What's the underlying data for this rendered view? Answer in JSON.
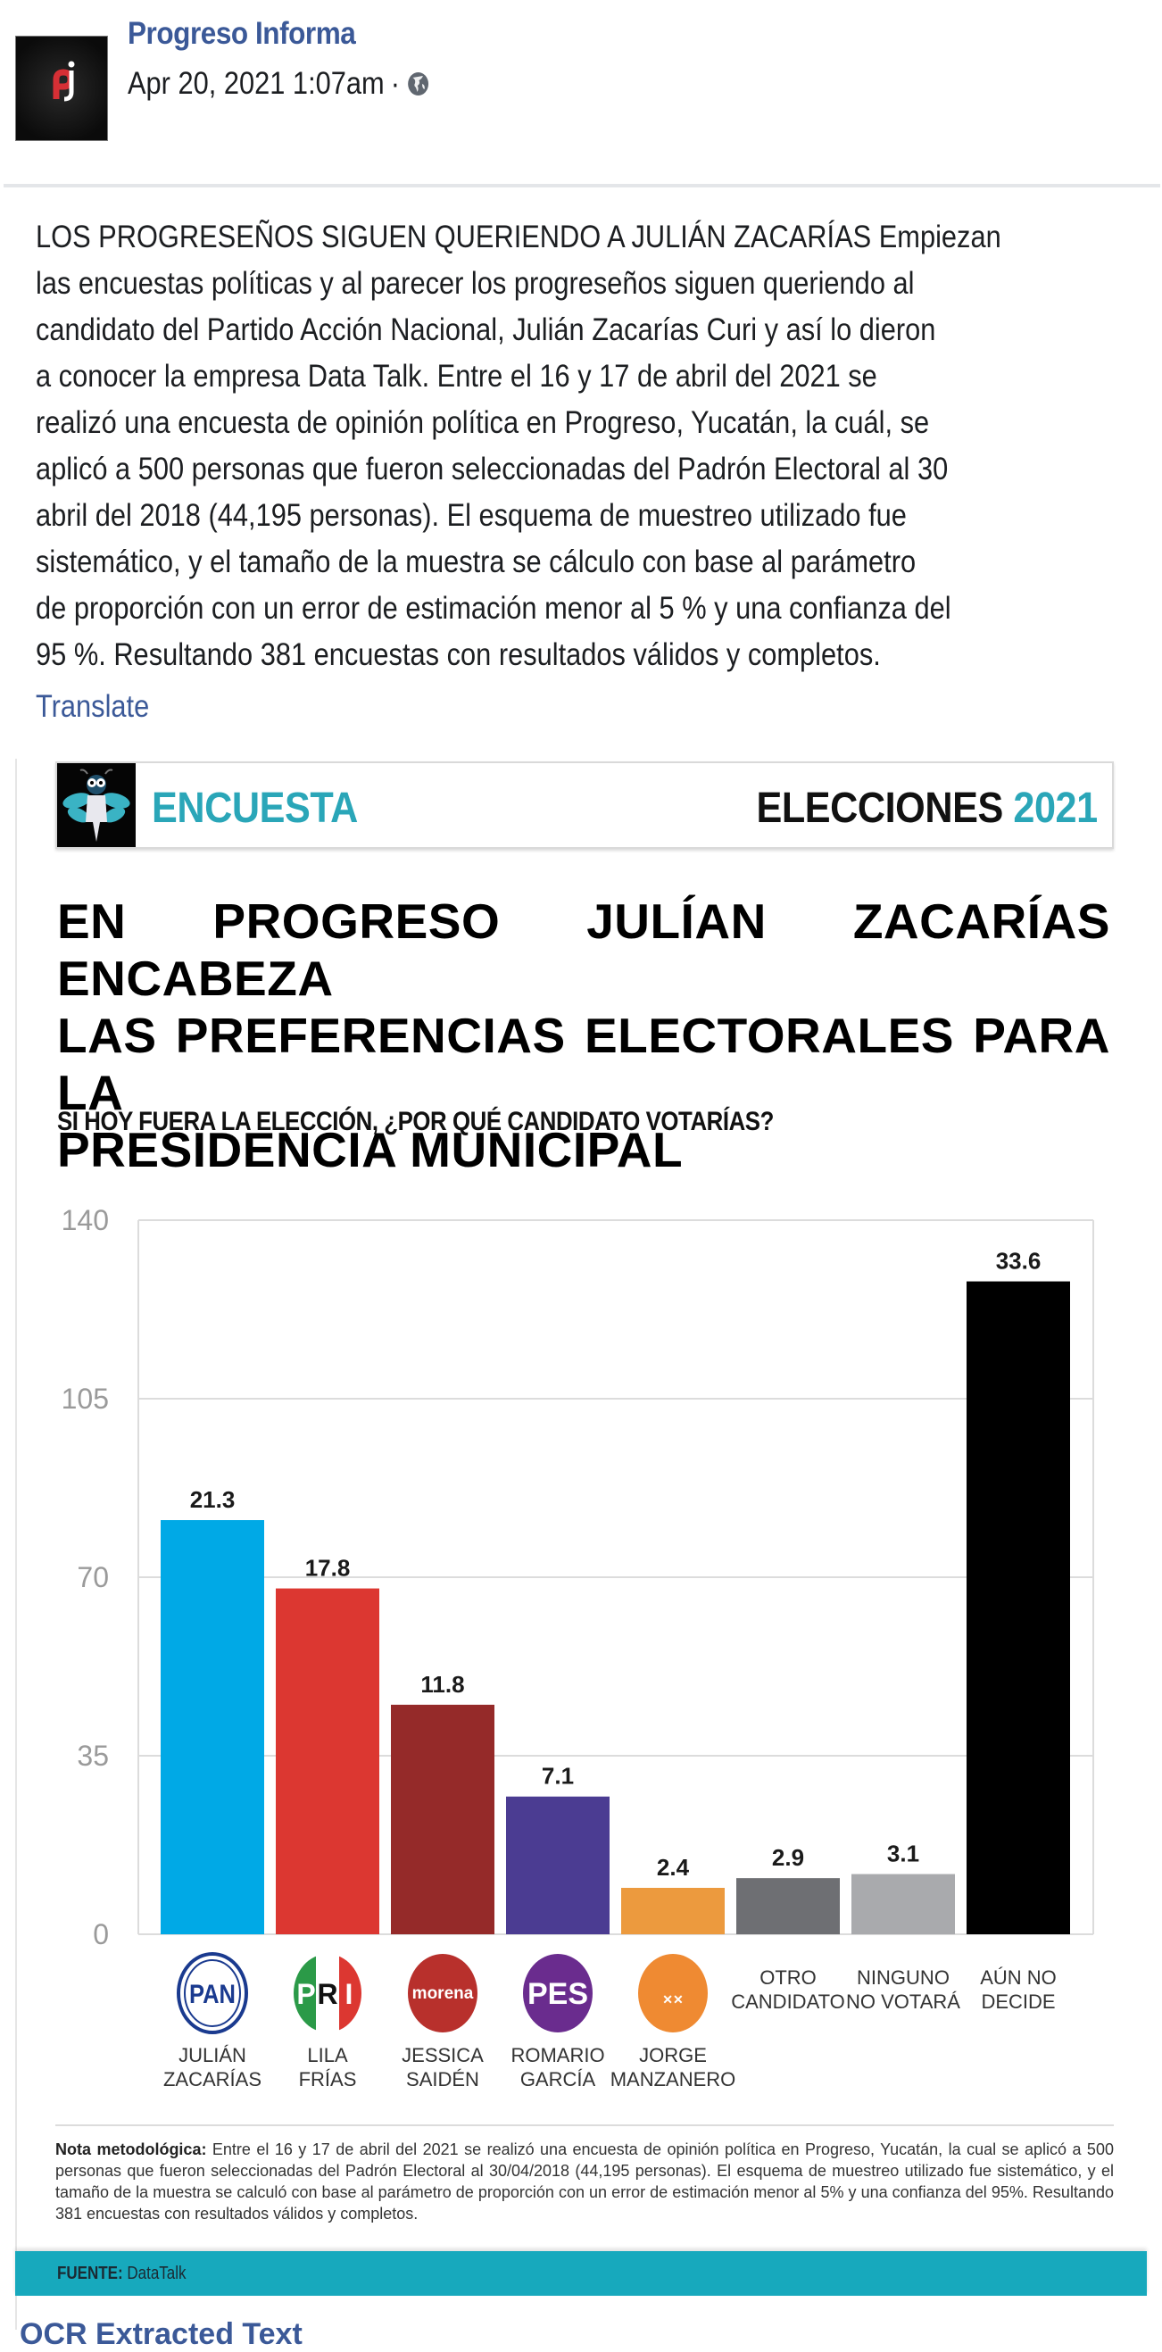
{
  "post": {
    "page_name": "Progreso Informa",
    "timestamp": "Apr 20, 2021 1:07am",
    "separator": "·",
    "privacy_icon": "globe-icon",
    "avatar_icon": "progreso-informa-logo",
    "text_lines": [
      "LOS PROGRESEÑOS SIGUEN QUERIENDO A JULIÁN ZACARÍAS Empiezan",
      "las encuestas políticas y al parecer los progreseños siguen queriendo al",
      "candidato del Partido Acción Nacional, Julián Zacarías Curi y así lo dieron",
      "a conocer la empresa Data Talk. Entre el 16 y 17 de abril del 2021 se",
      "realizó una encuesta de opinión política en Progreso, Yucatán, la cuál, se",
      "aplicó a 500 personas que fueron seleccionadas del Padrón Electoral al 30",
      "abril del 2018 (44,195 personas). El esquema de muestreo utilizado fue",
      "sistemático, y el tamaño de la muestra se cálculo con base al parámetro",
      "de proporción con un error de estimación menor al 5 % y una confianza del",
      "95 %. Resultando 381 encuestas con resultados válidos y completos."
    ],
    "translate_label": "Translate",
    "ocr_link_label": "OCR Extracted Text"
  },
  "infographic": {
    "logo_icon": "dragonfly-icon",
    "encuesta_label": "ENCUESTA",
    "elecciones_label": "ELECCIONES",
    "elecciones_year": "2021",
    "headline_lines": [
      "EN PROGRESO JULÍAN ZACARÍAS ENCABEZA",
      "LAS PREFERENCIAS ELECTORALES PARA LA",
      "PRESIDENCIA MUNICIPAL"
    ],
    "question": "SI HOY FUERA LA ELECCIÓN, ¿POR QUÉ CANDIDATO VOTARÍAS?",
    "nota_label": "Nota metodológica:",
    "nota_text": "Entre el 16 y 17 de abril del 2021 se realizó una encuesta de opinión política en Progreso, Yucatán, la cual se aplicó a 500 personas que fueron seleccionadas del Padrón Electoral al 30/04/2018 (44,195 personas). El esquema de muestreo utilizado fue sistemático, y el tamaño de la muestra se calculó con base al parámetro de proporción con un error de estimación menor al 5% y una confianza del 95%. Resultando 381 encuestas con resultados válidos y completos.",
    "fuente_label": "FUENTE:",
    "fuente_value": "DataTalk",
    "accent_color": "#2aa6b8",
    "footer_color": "#17a9bd"
  },
  "chart_data": {
    "type": "bar",
    "title": "SI HOY FUERA LA ELECCIÓN, ¿POR QUÉ CANDIDATO VOTARÍAS?",
    "xlabel": "",
    "ylabel": "",
    "ylim": [
      0,
      140
    ],
    "yticks": [
      0,
      35,
      70,
      105,
      140
    ],
    "grid": true,
    "categories": [
      [
        "JULIÁN",
        "ZACARÍAS"
      ],
      [
        "LILA",
        "FRÍAS"
      ],
      [
        "JESSICA",
        "SAIDÉN"
      ],
      [
        "ROMARIO",
        "GARCÍA"
      ],
      [
        "JORGE",
        "MANZANERO"
      ],
      [
        "OTRO",
        "CANDIDATO"
      ],
      [
        "NINGUNO",
        "NO VOTARÁ"
      ],
      [
        "AÚN NO",
        "DECIDE"
      ]
    ],
    "party_logos": [
      "PAN",
      "PRI",
      "morena",
      "PES",
      "MC",
      null,
      null,
      null
    ],
    "bar_values": [
      81.2,
      67.8,
      45.0,
      27.0,
      9.1,
      11.0,
      11.8,
      128.0
    ],
    "data_labels": [
      "21.3",
      "17.8",
      "11.8",
      "7.1",
      "2.4",
      "2.9",
      "3.1",
      "33.6"
    ],
    "colors": [
      "#00a9e6",
      "#dc3731",
      "#952a29",
      "#4b3c92",
      "#ec9a3e",
      "#6e6f73",
      "#a9aaad",
      "#000000"
    ],
    "logo_colors": [
      "#1a3a8f",
      "#dc3731",
      "#b8302c",
      "#6a2c8e",
      "#ef8a32",
      null,
      null,
      null
    ]
  }
}
